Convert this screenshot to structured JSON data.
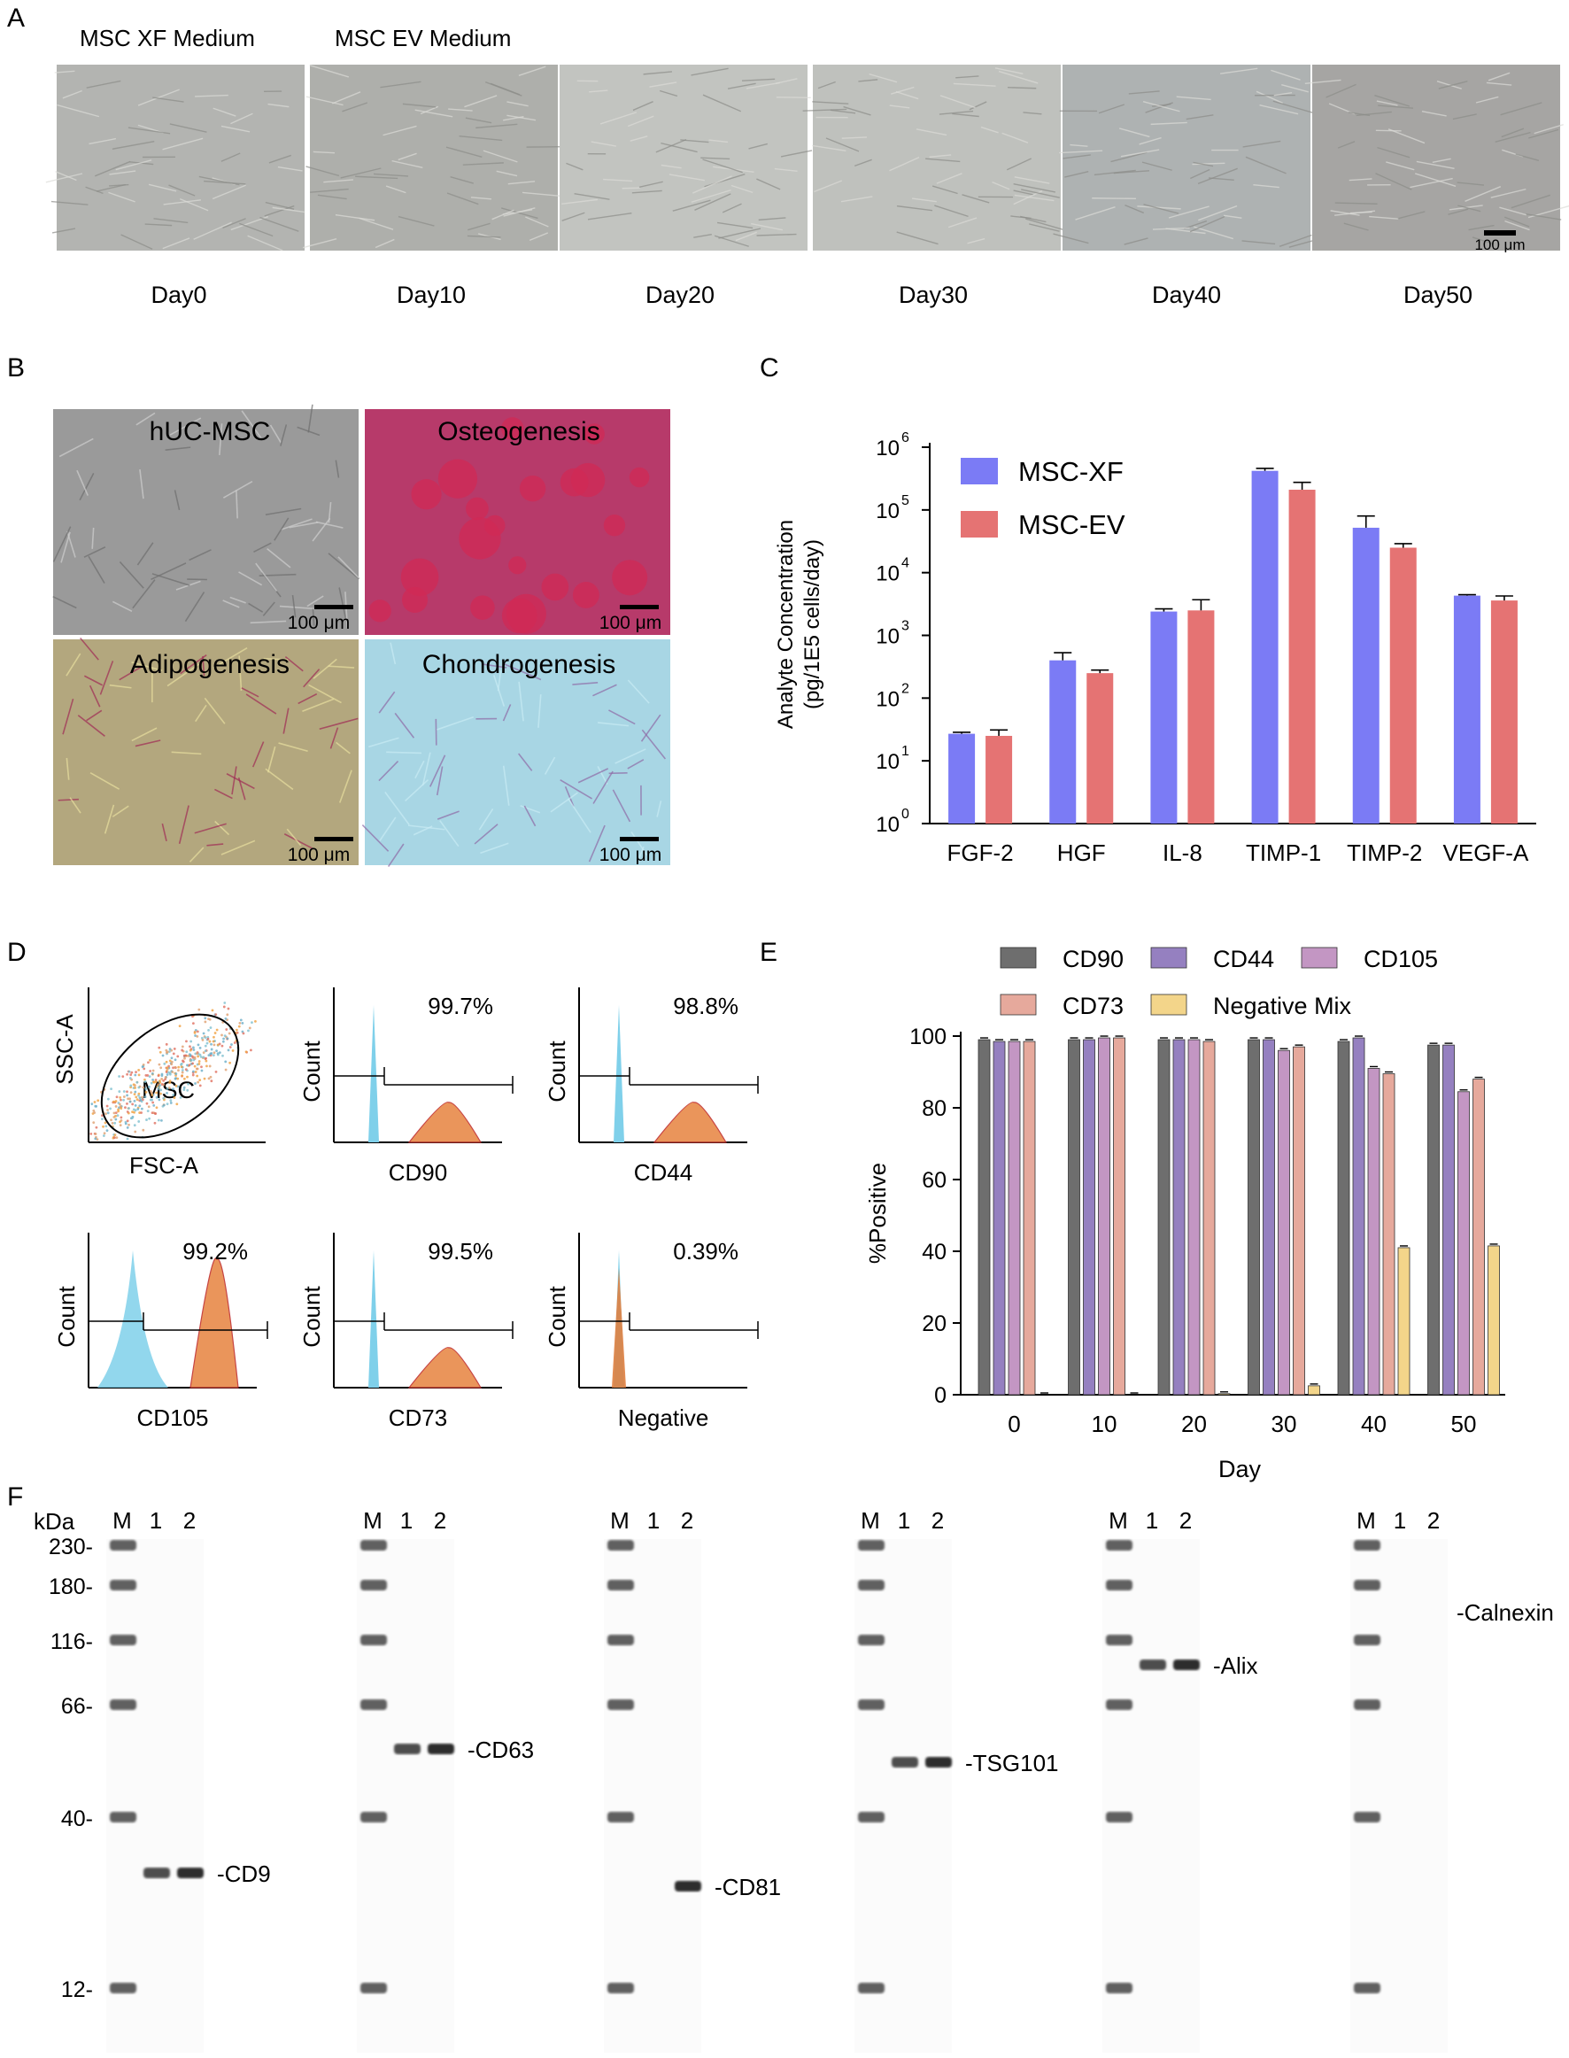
{
  "panel_letters": [
    "A",
    "B",
    "C",
    "D",
    "E",
    "F"
  ],
  "panel_a": {
    "medium_labels": [
      "MSC XF Medium",
      "MSC EV Medium"
    ],
    "days": [
      "Day0",
      "Day10",
      "Day20",
      "Day30",
      "Day40",
      "Day50"
    ],
    "scale_bar": "100 μm"
  },
  "panel_b": {
    "tiles": [
      {
        "label": "hUC-MSC",
        "scale": "100 μm",
        "bg": "#9a9a9a"
      },
      {
        "label": "Osteogenesis",
        "scale": "100 μm",
        "bg": "#b73a6a"
      },
      {
        "label": "Adipogenesis",
        "scale": "100 μm",
        "bg": "#b3a77e"
      },
      {
        "label": "Chondrogenesis",
        "scale": "100 μm",
        "bg": "#a8d6e4"
      }
    ]
  },
  "chart_c": {
    "type": "bar",
    "y_label_line1": "Analyte Concentration",
    "y_label_line2": "(pg/1E5 cells/day)",
    "y_scale": "log",
    "y_ticks": [
      "10",
      "10",
      "10",
      "10",
      "10",
      "10",
      "10"
    ],
    "y_tick_exponents": [
      "0",
      "1",
      "2",
      "3",
      "4",
      "5",
      "6"
    ],
    "ylim": [
      1,
      1000000
    ],
    "categories": [
      "FGF-2",
      "HGF",
      "IL-8",
      "TIMP-1",
      "TIMP-2",
      "VEGF-A"
    ],
    "series": [
      {
        "name": "MSC-XF",
        "color": "#7b7bf5",
        "values": [
          27,
          400,
          2400,
          420000,
          52000,
          4300
        ],
        "err": [
          28.5,
          530,
          2650,
          460000,
          80000,
          4450
        ]
      },
      {
        "name": "MSC-EV",
        "color": "#e57373",
        "values": [
          25,
          250,
          2500,
          210000,
          25000,
          3600
        ],
        "err": [
          31,
          280,
          3700,
          275000,
          29000,
          4250
        ]
      }
    ],
    "legend": "top-left"
  },
  "panel_d": {
    "scatter": {
      "gate_label": "MSC",
      "x_label": "FSC-A",
      "y_label": "SSC-A"
    },
    "histograms": [
      {
        "marker": "CD90",
        "percent": "99.7%",
        "y_label": "Count"
      },
      {
        "marker": "CD44",
        "percent": "98.8%",
        "y_label": "Count"
      },
      {
        "marker": "CD105",
        "percent": "99.2%",
        "y_label": "Count"
      },
      {
        "marker": "CD73",
        "percent": "99.5%",
        "y_label": "Count"
      },
      {
        "marker": "Negative",
        "percent": "0.39%",
        "y_label": "Count"
      }
    ]
  },
  "chart_e": {
    "type": "bar",
    "x_label": "Day",
    "y_label": "%Positive",
    "ylim": [
      0,
      100
    ],
    "y_ticks": [
      "0",
      "20",
      "40",
      "60",
      "80",
      "100"
    ],
    "categories": [
      "0",
      "10",
      "20",
      "30",
      "40",
      "50"
    ],
    "series": [
      {
        "name": "CD90",
        "color": "#6e6e6e",
        "values": [
          99,
          99,
          99,
          99,
          98.5,
          97.5
        ]
      },
      {
        "name": "CD44",
        "color": "#9580c0",
        "values": [
          98.5,
          99,
          99,
          99,
          99.5,
          97.5
        ]
      },
      {
        "name": "CD105",
        "color": "#c396c3",
        "values": [
          98.5,
          99.5,
          99,
          96,
          91,
          84.5
        ]
      },
      {
        "name": "CD73",
        "color": "#e6a99c",
        "values": [
          98.5,
          99.5,
          98.5,
          97,
          89.5,
          88
        ]
      },
      {
        "name": "Negative Mix",
        "color": "#f3d58a",
        "values": [
          0,
          0,
          0.3,
          2.5,
          41,
          41.5
        ]
      }
    ],
    "legend": "top"
  },
  "panel_f": {
    "unit": "kDa",
    "mw_labels": [
      "230-",
      "180-",
      "116-",
      "66-",
      "40-",
      "12-"
    ],
    "blots": [
      {
        "target": "-CD9",
        "lanes": [
          "M",
          "1",
          "2"
        ]
      },
      {
        "target": "-CD63",
        "lanes": [
          "M",
          "1",
          "2"
        ]
      },
      {
        "target": "-CD81",
        "lanes": [
          "M",
          "1",
          "2"
        ]
      },
      {
        "target": "-TSG101",
        "lanes": [
          "M",
          "1",
          "2"
        ]
      },
      {
        "target": "-Alix",
        "lanes": [
          "M",
          "1",
          "2"
        ]
      },
      {
        "target": "-Calnexin",
        "lanes": [
          "M",
          "1",
          "2"
        ]
      }
    ]
  }
}
